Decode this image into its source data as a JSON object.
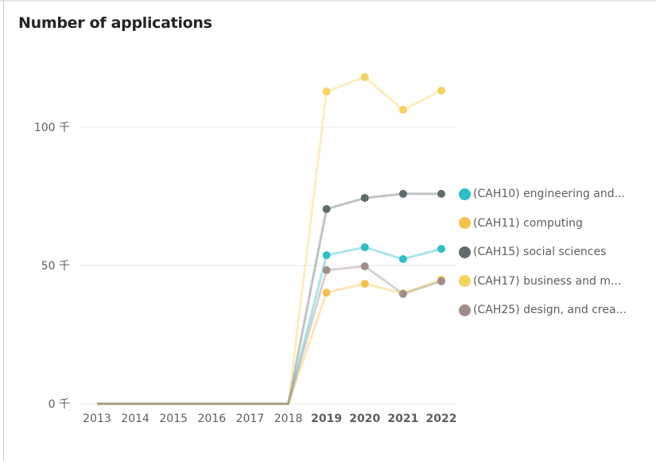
{
  "chart_data": {
    "type": "line",
    "title": "Number of applications",
    "xlabel": "",
    "ylabel": "",
    "x": [
      "2013",
      "2014",
      "2015",
      "2016",
      "2017",
      "2018",
      "2019",
      "2020",
      "2021",
      "2022"
    ],
    "x_bold": [
      "2019",
      "2020",
      "2021",
      "2022"
    ],
    "ylim": [
      0,
      120000
    ],
    "yticks": [
      {
        "value": 0,
        "label": "0 千"
      },
      {
        "value": 50000,
        "label": "50 千"
      },
      {
        "value": 100000,
        "label": "100 千"
      }
    ],
    "grid": true,
    "legend_position": "right",
    "series": [
      {
        "name": "(CAH10) engineering and...",
        "color": "#2ebfc6",
        "values": [
          0,
          0,
          0,
          0,
          0,
          0,
          53700,
          56600,
          52300,
          56000
        ]
      },
      {
        "name": "(CAH11) computing",
        "color": "#f5c04a",
        "values": [
          0,
          0,
          0,
          0,
          0,
          0,
          40200,
          43400,
          39900,
          44800
        ]
      },
      {
        "name": "(CAH15) social sciences",
        "color": "#5f6b6d",
        "values": [
          0,
          0,
          0,
          0,
          0,
          0,
          70400,
          74400,
          75900,
          75900
        ]
      },
      {
        "name": "(CAH17) business and m...",
        "color": "#f4d35e",
        "values": [
          0,
          0,
          0,
          0,
          0,
          0,
          112900,
          118100,
          106300,
          113200
        ]
      },
      {
        "name": "(CAH25) design, and crea...",
        "color": "#a38d8a",
        "values": [
          0,
          0,
          0,
          0,
          0,
          0,
          48300,
          49700,
          39700,
          44300
        ]
      }
    ]
  }
}
